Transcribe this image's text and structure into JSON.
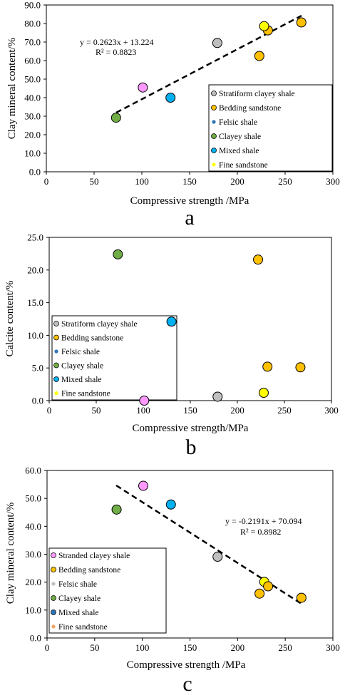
{
  "chart_data": [
    {
      "type": "scatter",
      "panel_label": "a",
      "xlabel": "Compressive strength /MPa",
      "ylabel": "Clay mineral content/%",
      "xlim": [
        0,
        300
      ],
      "ylim": [
        0,
        90
      ],
      "xticks": [
        "0",
        "50",
        "100",
        "150",
        "200",
        "250",
        "300"
      ],
      "yticks": [
        "0.0",
        "10.0",
        "20.0",
        "30.0",
        "40.0",
        "50.0",
        "60.0",
        "70.0",
        "80.0",
        "90.0"
      ],
      "legend": [
        {
          "name": "Stratiform clayey shale",
          "color": "#bfbfbf"
        },
        {
          "name": "Bedding sandstone",
          "color": "#ffc000"
        },
        {
          "name": "Felsic shale",
          "color": "#2e75b6"
        },
        {
          "name": "Clayey shale",
          "color": "#70ad47"
        },
        {
          "name": "Mixed shale",
          "color": "#00b0f0"
        },
        {
          "name": "Fine sandstone",
          "color": "#ffff00"
        }
      ],
      "points": [
        {
          "x": 73,
          "y": 29.2,
          "color": "#70ad47"
        },
        {
          "x": 101,
          "y": 45.5,
          "color": "#ff99ff"
        },
        {
          "x": 130,
          "y": 40.0,
          "color": "#00b0f0"
        },
        {
          "x": 179,
          "y": 69.5,
          "color": "#bfbfbf"
        },
        {
          "x": 223,
          "y": 62.5,
          "color": "#ffc000"
        },
        {
          "x": 232,
          "y": 76.3,
          "color": "#ffc000"
        },
        {
          "x": 267,
          "y": 80.6,
          "color": "#ffc000"
        },
        {
          "x": 228,
          "y": 78.6,
          "color": "#ffff00"
        }
      ],
      "trendline": {
        "x": [
          73,
          267
        ],
        "slope": 0.2623,
        "intercept": 13.224
      },
      "equation": "y = 0.2623x + 13.224",
      "r2": "R² = 0.8823"
    },
    {
      "type": "scatter",
      "panel_label": "b",
      "xlabel": "Compressive strength/MPa",
      "ylabel": "Calcite content/%",
      "xlim": [
        0,
        300
      ],
      "ylim": [
        0,
        25
      ],
      "xticks": [
        "0",
        "50",
        "100",
        "150",
        "200",
        "250",
        "300"
      ],
      "yticks": [
        "0.0",
        "5.0",
        "10.0",
        "15.0",
        "20.0",
        "25.0"
      ],
      "legend": [
        {
          "name": "Stratiform clayey shale",
          "color": "#bfbfbf"
        },
        {
          "name": "Bedding sandstone",
          "color": "#ffc000"
        },
        {
          "name": "Felsic shale",
          "color": "#2e75b6"
        },
        {
          "name": "Clayey shale",
          "color": "#70ad47"
        },
        {
          "name": "Mixed shale",
          "color": "#00b0f0"
        },
        {
          "name": "Fine sandstone",
          "color": "#ffff00"
        }
      ],
      "points": [
        {
          "x": 73,
          "y": 22.4,
          "color": "#70ad47"
        },
        {
          "x": 222,
          "y": 21.6,
          "color": "#ffc000"
        },
        {
          "x": 130,
          "y": 12.1,
          "color": "#00b0f0"
        },
        {
          "x": 232,
          "y": 5.2,
          "color": "#ffc000"
        },
        {
          "x": 267,
          "y": 5.1,
          "color": "#ffc000"
        },
        {
          "x": 228,
          "y": 1.2,
          "color": "#ffff00"
        },
        {
          "x": 179,
          "y": 0.6,
          "color": "#bfbfbf"
        },
        {
          "x": 101,
          "y": 0.0,
          "color": "#ff99ff"
        }
      ]
    },
    {
      "type": "scatter",
      "panel_label": "c",
      "xlabel": "Compressive strength /MPa",
      "ylabel": "Clay mineral content/%",
      "xlim": [
        0,
        300
      ],
      "ylim": [
        0,
        60
      ],
      "xticks": [
        "0",
        "50",
        "100",
        "150",
        "200",
        "250",
        "300"
      ],
      "yticks": [
        "0.0",
        "10.0",
        "20.0",
        "30.0",
        "40.0",
        "50.0",
        "60.0"
      ],
      "legend": [
        {
          "name": "Stranded clayey shale",
          "color": "#ff99ff"
        },
        {
          "name": "Bedding sandstone",
          "color": "#ffc000"
        },
        {
          "name": "Felsic shale",
          "color": "#bfbfbf"
        },
        {
          "name": "Clayey shale",
          "color": "#70ad47"
        },
        {
          "name": "Mixed shale",
          "color": "#2e75b6"
        },
        {
          "name": "Fine sandstone",
          "color": "#f4a460"
        }
      ],
      "points": [
        {
          "x": 101,
          "y": 54.5,
          "color": "#ff99ff"
        },
        {
          "x": 73,
          "y": 46.0,
          "color": "#70ad47"
        },
        {
          "x": 130,
          "y": 47.8,
          "color": "#00b0f0"
        },
        {
          "x": 179,
          "y": 29.1,
          "color": "#bfbfbf"
        },
        {
          "x": 228,
          "y": 20.1,
          "color": "#ffff00"
        },
        {
          "x": 232,
          "y": 18.5,
          "color": "#ffc000"
        },
        {
          "x": 223,
          "y": 15.9,
          "color": "#ffc000"
        },
        {
          "x": 267,
          "y": 14.4,
          "color": "#ffc000"
        }
      ],
      "trendline": {
        "x": [
          73,
          267
        ],
        "slope": -0.2191,
        "intercept": 70.094
      },
      "equation": "y = -0.2191x + 70.094",
      "r2": "R² = 0.8982"
    }
  ]
}
